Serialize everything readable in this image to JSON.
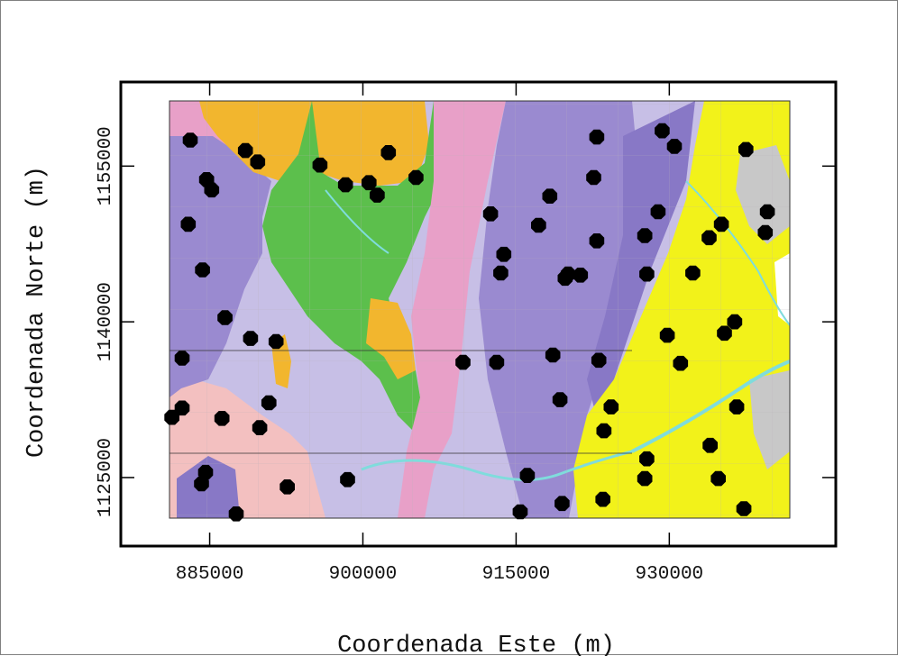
{
  "chart_data": {
    "type": "scatter",
    "title": "",
    "xlabel": "Coordenada Este (m)",
    "ylabel": "Coordenada Norte (m)",
    "x_ticks": [
      885000,
      900000,
      915000,
      930000
    ],
    "y_ticks": [
      1125000,
      1140000,
      1155000
    ],
    "xlim": [
      876300,
      946300
    ],
    "ylim": [
      1118400,
      1163100
    ],
    "background": "geologic map",
    "colors": {
      "sample_point": "#000000",
      "unit_yellow": "#f2f21a",
      "unit_green": "#5cbf4c",
      "unit_orange": "#f2b62e",
      "unit_purple": "#9a8ad0",
      "unit_lavender": "#c7bfe6",
      "unit_pink": "#e8a0c8",
      "unit_salmon": "#f3c0c0",
      "river": "#7fdcdc"
    },
    "points": [
      [
        883100,
        1157500
      ],
      [
        888500,
        1156500
      ],
      [
        889700,
        1155400
      ],
      [
        895800,
        1155100
      ],
      [
        898300,
        1153200
      ],
      [
        900600,
        1153400
      ],
      [
        901400,
        1152200
      ],
      [
        902500,
        1156300
      ],
      [
        905200,
        1153900
      ],
      [
        884700,
        1153700
      ],
      [
        885200,
        1152700
      ],
      [
        882900,
        1149400
      ],
      [
        884300,
        1145000
      ],
      [
        886500,
        1140400
      ],
      [
        889000,
        1138400
      ],
      [
        891500,
        1138100
      ],
      [
        882300,
        1136500
      ],
      [
        882300,
        1131700
      ],
      [
        881300,
        1130800
      ],
      [
        886200,
        1130700
      ],
      [
        889900,
        1129800
      ],
      [
        890800,
        1132200
      ],
      [
        884600,
        1125500
      ],
      [
        884200,
        1124400
      ],
      [
        892600,
        1124100
      ],
      [
        898500,
        1124800
      ],
      [
        887600,
        1121500
      ],
      [
        912500,
        1150400
      ],
      [
        913800,
        1146500
      ],
      [
        913500,
        1144700
      ],
      [
        909800,
        1136100
      ],
      [
        913100,
        1136100
      ],
      [
        917200,
        1149300
      ],
      [
        918300,
        1152100
      ],
      [
        919800,
        1144200
      ],
      [
        920100,
        1144600
      ],
      [
        921300,
        1144500
      ],
      [
        918600,
        1136800
      ],
      [
        919300,
        1132500
      ],
      [
        922900,
        1157800
      ],
      [
        922600,
        1153900
      ],
      [
        922900,
        1147800
      ],
      [
        923100,
        1136300
      ],
      [
        923600,
        1129500
      ],
      [
        924300,
        1131800
      ],
      [
        916100,
        1125200
      ],
      [
        915400,
        1121700
      ],
      [
        919500,
        1122500
      ],
      [
        923500,
        1122900
      ],
      [
        927600,
        1148300
      ],
      [
        927800,
        1144600
      ],
      [
        928900,
        1150600
      ],
      [
        929300,
        1158400
      ],
      [
        930500,
        1156900
      ],
      [
        929800,
        1138700
      ],
      [
        931100,
        1136000
      ],
      [
        932300,
        1144700
      ],
      [
        933900,
        1148100
      ],
      [
        935100,
        1149400
      ],
      [
        935400,
        1138900
      ],
      [
        936400,
        1140000
      ],
      [
        936600,
        1131800
      ],
      [
        934000,
        1128100
      ],
      [
        927800,
        1126800
      ],
      [
        927600,
        1124900
      ],
      [
        934800,
        1124900
      ],
      [
        937300,
        1122000
      ],
      [
        937500,
        1156600
      ],
      [
        939600,
        1150600
      ],
      [
        939400,
        1148600
      ]
    ]
  }
}
